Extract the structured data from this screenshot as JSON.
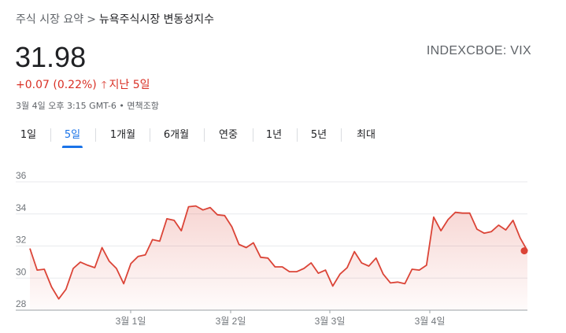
{
  "breadcrumb": {
    "parent": "주식 시장 요약",
    "separator": ">",
    "current": "뉴욕주식시장 변동성지수"
  },
  "quote": {
    "price": "31.98",
    "ticker": "INDEXCBOE: VIX",
    "change": "+0.07 (0.22%)",
    "change_icon": "arrow-up-icon",
    "period": "지난 5일",
    "timestamp": "3월 4일 오후 3:15 GMT-6 • 면책조항"
  },
  "colors": {
    "up_red": "#d93025",
    "accent_blue": "#1a73e8",
    "line_red": "#db4437"
  },
  "tabs": [
    {
      "label": "1일",
      "active": false
    },
    {
      "label": "5일",
      "active": true
    },
    {
      "label": "1개월",
      "active": false
    },
    {
      "label": "6개월",
      "active": false
    },
    {
      "label": "연중",
      "active": false
    },
    {
      "label": "1년",
      "active": false
    },
    {
      "label": "5년",
      "active": false
    },
    {
      "label": "최대",
      "active": false
    }
  ],
  "chart_data": {
    "type": "area",
    "ylim": [
      28,
      36
    ],
    "y_ticks": [
      28,
      30,
      32,
      34,
      36
    ],
    "x_ticks": [
      "3월 1일",
      "3월 2일",
      "3월 3일",
      "3월 4일"
    ],
    "grid": true,
    "series": [
      {
        "values": [
          31.85,
          30.5,
          30.55,
          29.45,
          28.7,
          29.3,
          30.6,
          31.0,
          30.8,
          30.65,
          31.9,
          31.05,
          30.6,
          29.65,
          30.9,
          31.35,
          31.45,
          32.4,
          32.3,
          33.7,
          33.6,
          32.95,
          34.45,
          34.5,
          34.25,
          34.4,
          33.95,
          33.9,
          33.2,
          32.1,
          31.9,
          32.2,
          31.3,
          31.25,
          30.7,
          30.7,
          30.4,
          30.4,
          30.6,
          30.95,
          30.3,
          30.5,
          29.5,
          30.25,
          30.65,
          31.65,
          30.95,
          30.75,
          31.25,
          30.25,
          29.7,
          29.75,
          29.65,
          30.55,
          30.5,
          30.8,
          33.8,
          32.95,
          33.65,
          34.1,
          34.05,
          34.05,
          33.05,
          32.8,
          32.9,
          33.3,
          33.0,
          33.6,
          32.5,
          31.7
        ]
      }
    ],
    "end_value": 31.7
  }
}
